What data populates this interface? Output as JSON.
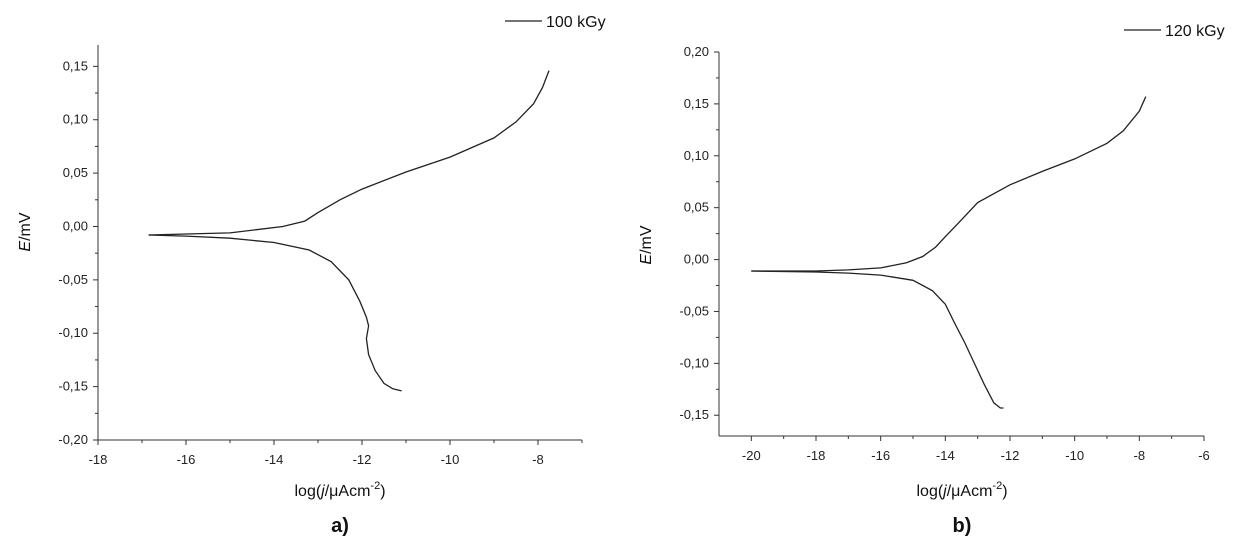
{
  "chart_data": [
    {
      "type": "line",
      "panel_label": "a)",
      "xlabel": {
        "base": "log(",
        "italic": "j",
        "mid": "/μAcm",
        "sup": "-2",
        "end": ")"
      },
      "ylabel": {
        "italic": "E",
        "rest": "/mV"
      },
      "xlim": [
        -18,
        -7
      ],
      "ylim": [
        -0.2,
        0.17
      ],
      "x_ticks": [
        -18,
        -16,
        -14,
        -12,
        -10,
        -8
      ],
      "x_tick_labels": [
        "-18",
        "-16",
        "-14",
        "-12",
        "-10",
        "-8"
      ],
      "y_ticks": [
        -0.2,
        -0.15,
        -0.1,
        -0.05,
        0.0,
        0.05,
        0.1,
        0.15
      ],
      "y_tick_labels": [
        "-0,20",
        "-0,15",
        "-0,10",
        "-0,05",
        "0,00",
        "0,05",
        "0,10",
        "0,15"
      ],
      "legend": "top-right",
      "series": [
        {
          "name": "100 kGy",
          "branches": [
            {
              "x": [
                -16.85,
                -16.0,
                -15.0,
                -14.4,
                -13.8,
                -13.3,
                -13.0,
                -12.5,
                -12.0,
                -11.0,
                -10.0,
                -9.0,
                -8.5,
                -8.1,
                -7.9,
                -7.75
              ],
              "y": [
                -0.008,
                -0.007,
                -0.006,
                -0.003,
                0.0,
                0.005,
                0.013,
                0.025,
                0.035,
                0.051,
                0.065,
                0.083,
                0.098,
                0.115,
                0.13,
                0.146
              ]
            },
            {
              "x": [
                -16.85,
                -16.0,
                -15.0,
                -14.0,
                -13.2,
                -12.7,
                -12.3,
                -12.05,
                -11.9,
                -11.85,
                -11.9,
                -11.85,
                -11.7,
                -11.5,
                -11.3,
                -11.1
              ],
              "y": [
                -0.008,
                -0.009,
                -0.011,
                -0.015,
                -0.022,
                -0.033,
                -0.05,
                -0.07,
                -0.085,
                -0.093,
                -0.105,
                -0.12,
                -0.135,
                -0.147,
                -0.152,
                -0.154
              ]
            }
          ]
        }
      ]
    },
    {
      "type": "line",
      "panel_label": "b)",
      "xlabel": {
        "base": "log(",
        "italic": "j",
        "mid": "/μAcm",
        "sup": "-2",
        "end": ")"
      },
      "ylabel": {
        "italic": "E",
        "rest": "/mV"
      },
      "xlim": [
        -21,
        -6
      ],
      "ylim": [
        -0.17,
        0.2
      ],
      "x_ticks": [
        -20,
        -18,
        -16,
        -14,
        -12,
        -10,
        -8,
        -6
      ],
      "x_tick_labels": [
        "-20",
        "-18",
        "-16",
        "-14",
        "-12",
        "-10",
        "-8",
        "-6"
      ],
      "y_ticks": [
        -0.15,
        -0.1,
        -0.05,
        0.0,
        0.05,
        0.1,
        0.15,
        0.2
      ],
      "y_tick_labels": [
        "-0,15",
        "-0,10",
        "-0,05",
        "0,00",
        "0,05",
        "0,10",
        "0,15",
        "0,20"
      ],
      "legend": "top-right",
      "series": [
        {
          "name": "120 kGy",
          "branches": [
            {
              "x": [
                -20.0,
                -18.0,
                -17.0,
                -16.0,
                -15.2,
                -14.7,
                -14.3,
                -14.0,
                -13.6,
                -13.0,
                -12.0,
                -11.0,
                -10.0,
                -9.0,
                -8.5,
                -8.0,
                -7.8
              ],
              "y": [
                -0.011,
                -0.011,
                -0.01,
                -0.008,
                -0.003,
                0.003,
                0.012,
                0.022,
                0.035,
                0.055,
                0.072,
                0.085,
                0.097,
                0.112,
                0.124,
                0.143,
                0.157
              ]
            },
            {
              "x": [
                -20.0,
                -18.0,
                -17.0,
                -16.0,
                -15.0,
                -14.4,
                -14.0,
                -13.7,
                -13.4,
                -13.1,
                -12.8,
                -12.5,
                -12.3,
                -12.2
              ],
              "y": [
                -0.011,
                -0.012,
                -0.013,
                -0.015,
                -0.02,
                -0.03,
                -0.043,
                -0.062,
                -0.08,
                -0.1,
                -0.12,
                -0.138,
                -0.143,
                -0.143
              ]
            }
          ]
        }
      ]
    }
  ]
}
